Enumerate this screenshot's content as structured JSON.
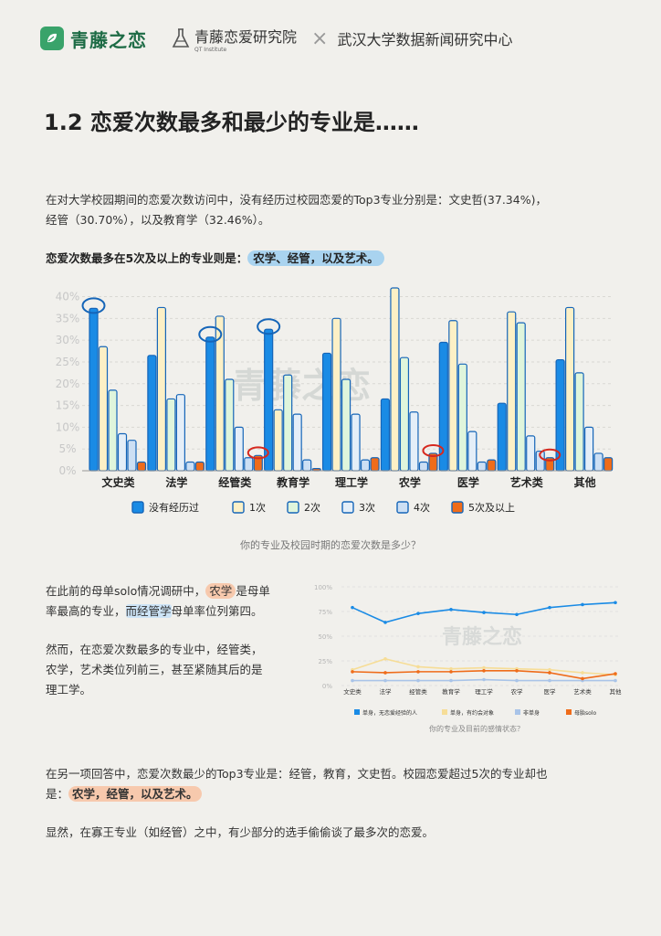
{
  "header": {
    "brand": "青藤之恋",
    "institute": "青藤恋爱研究院",
    "institute_sub": "QT Institute",
    "cross": "×",
    "partner": "武汉大学数据新闻研究中心"
  },
  "title": "1.2 恋爱次数最多和最少的专业是……",
  "intro": {
    "p1": "在对大学校园期间的恋爱次数访问中，没有经历过校园恋爱的Top3专业分别是：文史哲(37.34%)，",
    "p2": "经管（30.70%），以及教育学（32.46%）。",
    "p3_prefix": "恋爱次数最多在5次及以上的专业则是：",
    "p3_highlight": "农学、经管，以及艺术。"
  },
  "watermark": "青藤之恋",
  "chart_caption": "你的专业及校园时期的恋爱次数是多少？",
  "chart_data": [
    {
      "type": "bar",
      "categories": [
        "文史类",
        "法学",
        "经管类",
        "教育学",
        "理工学",
        "农学",
        "医学",
        "艺术类",
        "其他"
      ],
      "y_ticks": [
        "40%",
        "35%",
        "30%",
        "25%",
        "20%",
        "15%",
        "10%",
        "5%",
        "0%"
      ],
      "ylim": [
        0,
        42
      ],
      "grid": true,
      "legend_position": "bottom",
      "colors": [
        "#1a8be5",
        "#fcf0c6",
        "#dff5dc",
        "#e4eef8",
        "#ccdff4",
        "#ef6c1a"
      ],
      "series": [
        {
          "name": "没有经历过",
          "values": [
            37.3,
            26.5,
            30.7,
            32.5,
            27,
            16.5,
            29.5,
            15.5,
            25.5
          ]
        },
        {
          "name": "1次",
          "values": [
            28.5,
            37.5,
            35.5,
            14,
            35,
            42,
            34.5,
            36.5,
            37.5
          ]
        },
        {
          "name": "2次",
          "values": [
            18.5,
            16.5,
            21,
            22,
            21,
            26,
            24.5,
            34,
            22.5
          ]
        },
        {
          "name": "3次",
          "values": [
            8.5,
            17.5,
            10,
            13,
            13,
            13.5,
            9,
            8,
            10
          ]
        },
        {
          "name": "4次",
          "values": [
            7,
            2,
            3,
            2.5,
            2.5,
            2,
            2,
            4.5,
            4
          ]
        },
        {
          "name": "5次及以上",
          "values": [
            2,
            2,
            3.5,
            0.5,
            3,
            4,
            2.5,
            3,
            3
          ]
        }
      ],
      "annotations": [
        "circles on highest bars of 没有经历过 for 文史类, 经管类, 教育学",
        "circles on 5次及以上 bars for 经管类, 农学, 艺术类"
      ]
    },
    {
      "type": "line",
      "categories": [
        "文史类",
        "法学",
        "经管类",
        "教育学",
        "理工学",
        "农学",
        "医学",
        "艺术类",
        "其他"
      ],
      "y_ticks": [
        "100%",
        "75%",
        "50%",
        "25%",
        "0%"
      ],
      "ylim": [
        0,
        100
      ],
      "colors": [
        "#1a8be5",
        "#f6dd97",
        "#a9c4e8",
        "#ef6c1a"
      ],
      "series": [
        {
          "name": "单身，无恋爱经验的人",
          "values": [
            79,
            64,
            73,
            77,
            74,
            72,
            79,
            82,
            84
          ]
        },
        {
          "name": "单身，有约会对象",
          "values": [
            16,
            27,
            19,
            17,
            18,
            17,
            16,
            13,
            11
          ]
        },
        {
          "name": "非单身",
          "values": [
            5,
            5,
            5,
            5,
            6,
            5,
            5,
            5,
            5
          ]
        },
        {
          "name": "母胎solo",
          "values": [
            14,
            13,
            14,
            14,
            15,
            15,
            13,
            7,
            12
          ]
        }
      ],
      "caption": "你的专业及目前的感情状态？"
    }
  ],
  "mid": {
    "l1a": "在此前的母单solo情况调研中，",
    "l1b": "农学",
    "l1c": "是母单",
    "l2a": "率最高的专业，",
    "l2b": "而经管学",
    "l2c": "母单率位列第四。",
    "p2": [
      "然而，在恋爱次数最多的专业中，经管类，",
      "农学，艺术类位列前三，甚至紧随其后的是",
      "理工学。"
    ]
  },
  "bottom": {
    "p1": "在另一项回答中，恋爱次数最少的Top3专业是：经管，教育，文史哲。校园恋爱超过5次的专业却也",
    "p2_prefix": "是：",
    "p2_highlight": "农学，经管，以及艺术。",
    "p3": "显然，在寡王专业（如经管）之中，有少部分的选手偷偷谈了最多次的恋爱。"
  }
}
